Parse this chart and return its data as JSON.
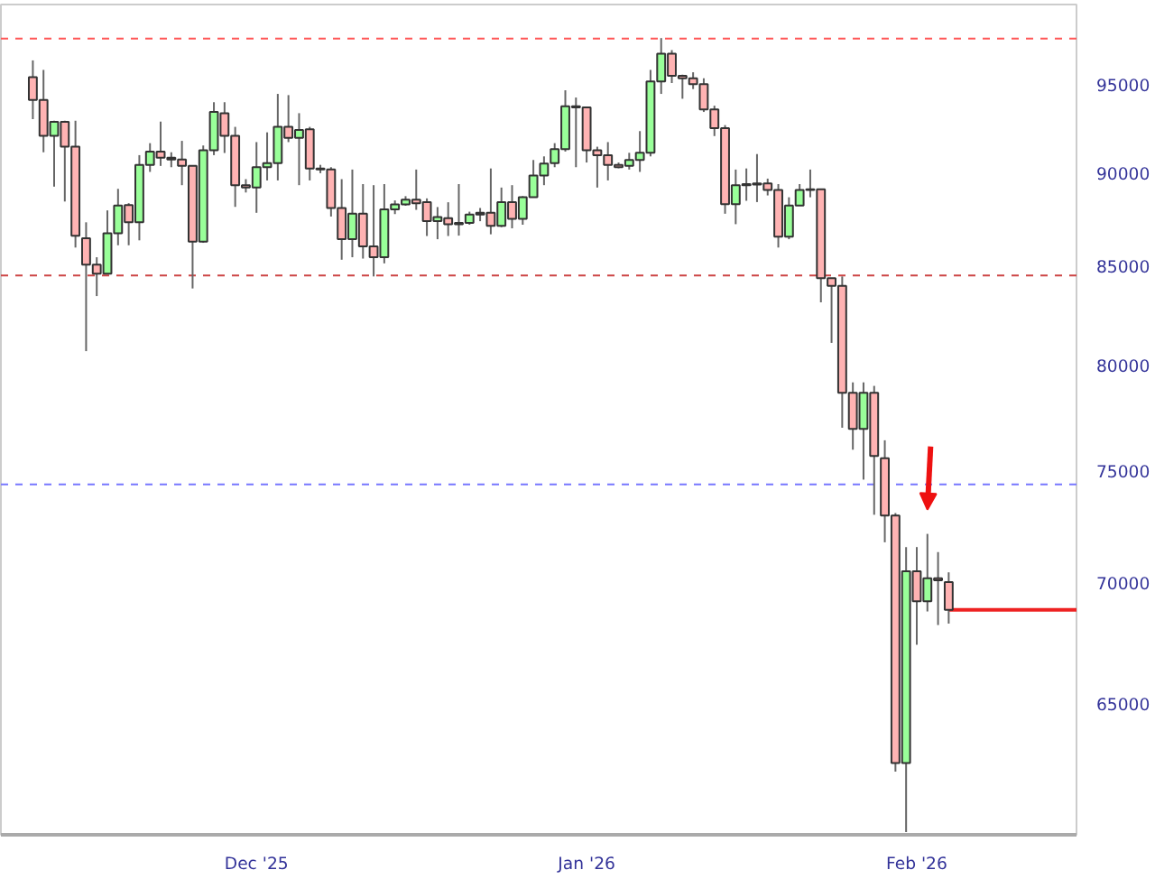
{
  "chart_data": {
    "type": "candlestick",
    "x": [
      "2025-11-10",
      "2025-11-11",
      "2025-11-12",
      "2025-11-13",
      "2025-11-14",
      "2025-11-15",
      "2025-11-16",
      "2025-11-17",
      "2025-11-18",
      "2025-11-19",
      "2025-11-20",
      "2025-11-21",
      "2025-11-22",
      "2025-11-23",
      "2025-11-24",
      "2025-11-25",
      "2025-11-26",
      "2025-11-27",
      "2025-11-28",
      "2025-11-29",
      "2025-11-30",
      "2025-12-01",
      "2025-12-02",
      "2025-12-03",
      "2025-12-04",
      "2025-12-05",
      "2025-12-06",
      "2025-12-07",
      "2025-12-08",
      "2025-12-09",
      "2025-12-10",
      "2025-12-11",
      "2025-12-12",
      "2025-12-13",
      "2025-12-14",
      "2025-12-15",
      "2025-12-16",
      "2025-12-17",
      "2025-12-18",
      "2025-12-19",
      "2025-12-20",
      "2025-12-21",
      "2025-12-22",
      "2025-12-23",
      "2025-12-24",
      "2025-12-25",
      "2025-12-26",
      "2025-12-27",
      "2025-12-28",
      "2025-12-29",
      "2025-12-30",
      "2025-12-31",
      "2026-01-01",
      "2026-01-02",
      "2026-01-03",
      "2026-01-04",
      "2026-01-05",
      "2026-01-06",
      "2026-01-07",
      "2026-01-08",
      "2026-01-09",
      "2026-01-10",
      "2026-01-11",
      "2026-01-12",
      "2026-01-13",
      "2026-01-14",
      "2026-01-15",
      "2026-01-16",
      "2026-01-17",
      "2026-01-18",
      "2026-01-19",
      "2026-01-20",
      "2026-01-21",
      "2026-01-22",
      "2026-01-23",
      "2026-01-24",
      "2026-01-25",
      "2026-01-26",
      "2026-01-27",
      "2026-01-28",
      "2026-01-29",
      "2026-01-30",
      "2026-01-31",
      "2026-02-01",
      "2026-02-02",
      "2026-02-03",
      "2026-02-04"
    ],
    "ohlc": [
      [
        95450,
        96440,
        93030,
        94130
      ],
      [
        94130,
        95880,
        91160,
        92080
      ],
      [
        92080,
        92940,
        89260,
        92870
      ],
      [
        92870,
        92940,
        88450,
        91470
      ],
      [
        91470,
        92940,
        85990,
        86610
      ],
      [
        86480,
        87330,
        80700,
        85090
      ],
      [
        85090,
        85480,
        83470,
        84620
      ],
      [
        84620,
        87970,
        84620,
        86750
      ],
      [
        86750,
        89140,
        86110,
        88230
      ],
      [
        88260,
        88360,
        86110,
        87330
      ],
      [
        87330,
        91000,
        86370,
        90460
      ],
      [
        90460,
        91670,
        90070,
        91200
      ],
      [
        91200,
        92890,
        90400,
        90860
      ],
      [
        90860,
        91160,
        90330,
        90760
      ],
      [
        90760,
        91800,
        89340,
        90400
      ],
      [
        90400,
        90400,
        83860,
        86300
      ],
      [
        86300,
        91540,
        86240,
        91270
      ],
      [
        91270,
        94000,
        91000,
        93440
      ],
      [
        93370,
        94000,
        91120,
        92080
      ],
      [
        92080,
        92590,
        88160,
        89340
      ],
      [
        89340,
        89670,
        88940,
        89210
      ],
      [
        89210,
        91730,
        87840,
        90330
      ],
      [
        90330,
        92280,
        89600,
        90560
      ],
      [
        90560,
        94480,
        89600,
        92590
      ],
      [
        92590,
        94410,
        91730,
        91970
      ],
      [
        91970,
        93370,
        89340,
        92420
      ],
      [
        92450,
        92590,
        89600,
        90260
      ],
      [
        90260,
        90460,
        90000,
        90200
      ],
      [
        90200,
        90330,
        87640,
        88100
      ],
      [
        88100,
        89670,
        85350,
        86430
      ],
      [
        86430,
        90200,
        85480,
        87790
      ],
      [
        87790,
        89400,
        85410,
        86050
      ],
      [
        86050,
        89340,
        84480,
        85480
      ],
      [
        85480,
        89400,
        85160,
        88030
      ],
      [
        88030,
        88510,
        87770,
        88290
      ],
      [
        88290,
        88740,
        88220,
        88550
      ],
      [
        88550,
        90200,
        88000,
        88350
      ],
      [
        88420,
        88620,
        86600,
        87390
      ],
      [
        87390,
        88150,
        86430,
        87610
      ],
      [
        87550,
        88410,
        86600,
        87230
      ],
      [
        87300,
        89400,
        86620,
        87230
      ],
      [
        87300,
        87900,
        87200,
        87740
      ],
      [
        87740,
        88100,
        87390,
        87840
      ],
      [
        87840,
        90260,
        86690,
        87140
      ],
      [
        87140,
        89210,
        87070,
        88420
      ],
      [
        88420,
        89340,
        87010,
        87520
      ],
      [
        87520,
        88740,
        87200,
        88680
      ],
      [
        88680,
        90730,
        88680,
        89870
      ],
      [
        89870,
        90930,
        89340,
        90530
      ],
      [
        90560,
        91670,
        90330,
        91330
      ],
      [
        91330,
        94690,
        91200,
        93770
      ],
      [
        93770,
        94270,
        90330,
        93700
      ],
      [
        93700,
        93700,
        90590,
        91270
      ],
      [
        91270,
        91470,
        89210,
        91000
      ],
      [
        91000,
        91730,
        89600,
        90460
      ],
      [
        90460,
        90590,
        90270,
        90330
      ],
      [
        90400,
        91130,
        90200,
        90730
      ],
      [
        90730,
        92350,
        90070,
        91130
      ],
      [
        91130,
        95880,
        90930,
        95210
      ],
      [
        95210,
        97770,
        94480,
        96840
      ],
      [
        96840,
        97050,
        95110,
        95530
      ],
      [
        95530,
        95600,
        94200,
        95390
      ],
      [
        95390,
        95740,
        94760,
        95040
      ],
      [
        95040,
        95390,
        93440,
        93580
      ],
      [
        93580,
        93800,
        92070,
        92520
      ],
      [
        92520,
        92690,
        87790,
        88300
      ],
      [
        88300,
        90200,
        87230,
        89340
      ],
      [
        89340,
        90260,
        88490,
        89400
      ],
      [
        89440,
        91060,
        88420,
        89370
      ],
      [
        89440,
        89700,
        88780,
        89080
      ],
      [
        89080,
        89400,
        85990,
        86560
      ],
      [
        86560,
        88680,
        86430,
        88230
      ],
      [
        88230,
        89400,
        88230,
        89080
      ],
      [
        89110,
        90200,
        88680,
        89080
      ],
      [
        89110,
        89110,
        83150,
        84390
      ],
      [
        84390,
        84390,
        81110,
        83990
      ],
      [
        83990,
        84480,
        77000,
        78670
      ],
      [
        78670,
        79170,
        75970,
        76950
      ],
      [
        76950,
        79170,
        74590,
        78670
      ],
      [
        78670,
        79000,
        73000,
        75680
      ],
      [
        75570,
        76410,
        71780,
        72970
      ],
      [
        72970,
        73080,
        62370,
        62700
      ],
      [
        62700,
        71570,
        60100,
        70520
      ],
      [
        70520,
        71570,
        67410,
        69230
      ],
      [
        69230,
        72150,
        68800,
        70210
      ],
      [
        70210,
        71350,
        68230,
        70130
      ],
      [
        70050,
        70470,
        68290,
        68870
      ]
    ],
    "xlim": [
      "2025-11-07",
      "2026-02-16"
    ],
    "xticks": [
      {
        "value": "2025-12-01",
        "label": "Dec '25"
      },
      {
        "value": "2026-01-01",
        "label": "Jan '26"
      },
      {
        "value": "2026-02-01",
        "label": "Feb '26"
      }
    ],
    "ylim": [
      60000,
      99800
    ],
    "yticks": [
      65000,
      70000,
      75000,
      80000,
      85000,
      90000,
      95000
    ],
    "log": true,
    "grid": false,
    "ref_lines": [
      {
        "axis": "y",
        "value": 97740,
        "color": "#ff5555",
        "line_style": "dashed"
      },
      {
        "axis": "y",
        "value": 84530,
        "color": "#cc4444",
        "line_style": "dashed"
      },
      {
        "axis": "y",
        "value": 74370,
        "color": "#7777ff",
        "line_style": "dashed"
      },
      {
        "axis": "y",
        "value": 68870,
        "color": "#ee2222",
        "line_style": "solid"
      }
    ]
  }
}
